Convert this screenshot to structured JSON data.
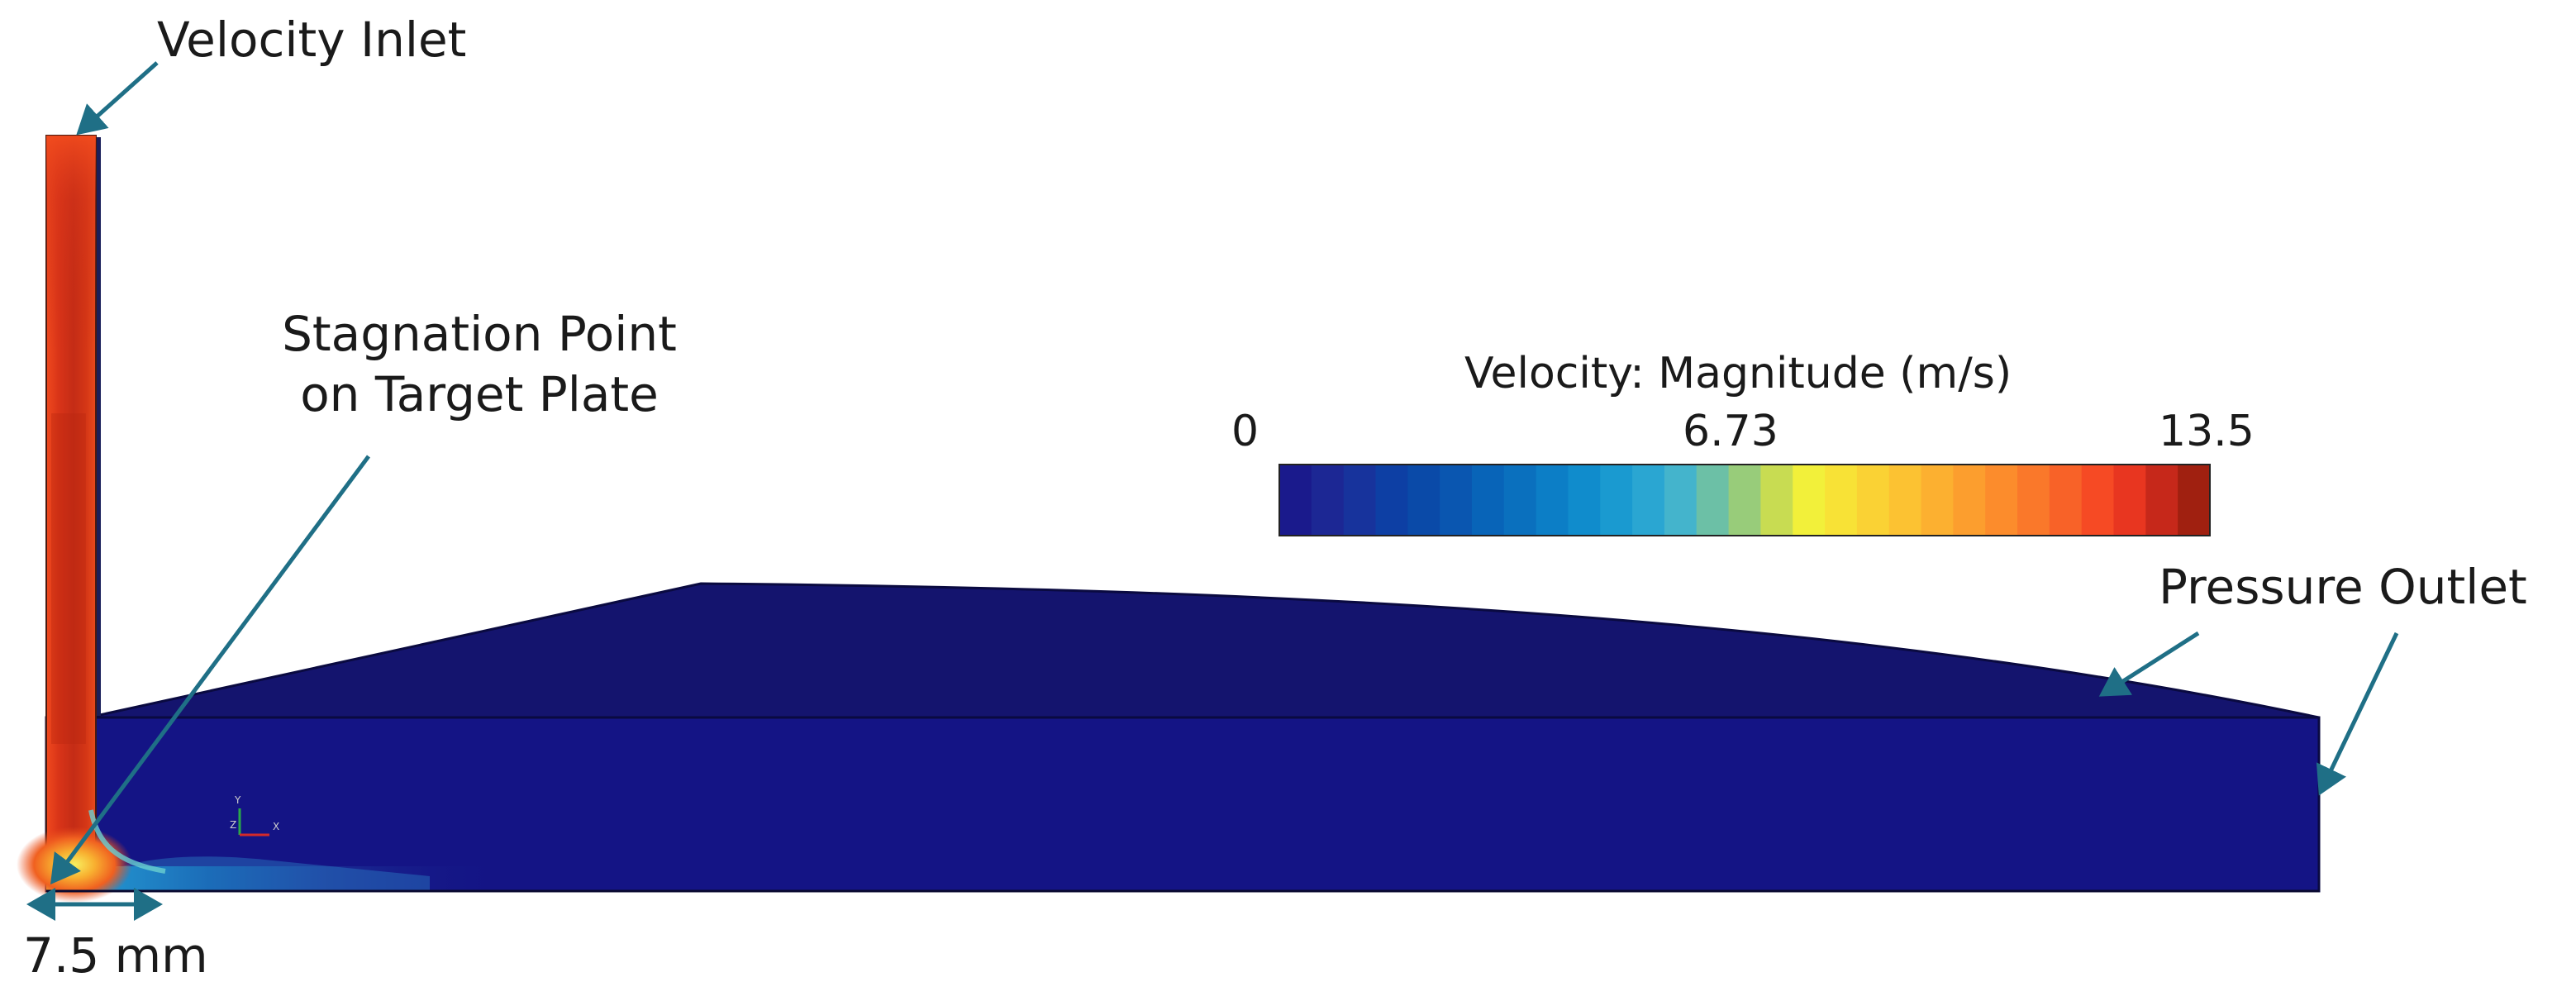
{
  "labels": {
    "inlet": "Velocity Inlet",
    "stagnation_line1": "Stagnation Point",
    "stagnation_line2": "on Target Plate",
    "outlet": "Pressure Outlet",
    "dimension": "7.5 mm"
  },
  "colorbar": {
    "title": "Velocity: Magnitude (m/s)",
    "min_label": "0",
    "mid_label": "6.73",
    "max_label": "13.5",
    "colors": [
      "#1a1a8c",
      "#1c2794",
      "#17339c",
      "#0d3fa4",
      "#0a4aa8",
      "#0a56b0",
      "#0864b8",
      "#0a70be",
      "#0c7ec6",
      "#108ccc",
      "#1a9ad0",
      "#2aa6d2",
      "#44b4cc",
      "#6cc0a6",
      "#98cc7a",
      "#c8dc52",
      "#f2f03a",
      "#f8e236",
      "#fad234",
      "#fcc232",
      "#fcb030",
      "#fc9e2e",
      "#fc8c2c",
      "#fa782a",
      "#f86228",
      "#f64a24",
      "#e83620",
      "#c6281a",
      "#a02010"
    ]
  },
  "axis_triad": {
    "y": "Y",
    "x": "X",
    "z": "Z"
  },
  "colors": {
    "domain_fill": "#141485",
    "upper_region_fill": "#14146e",
    "jet_core": "#e8401e",
    "annotation_arrow": "#1f6f86"
  }
}
